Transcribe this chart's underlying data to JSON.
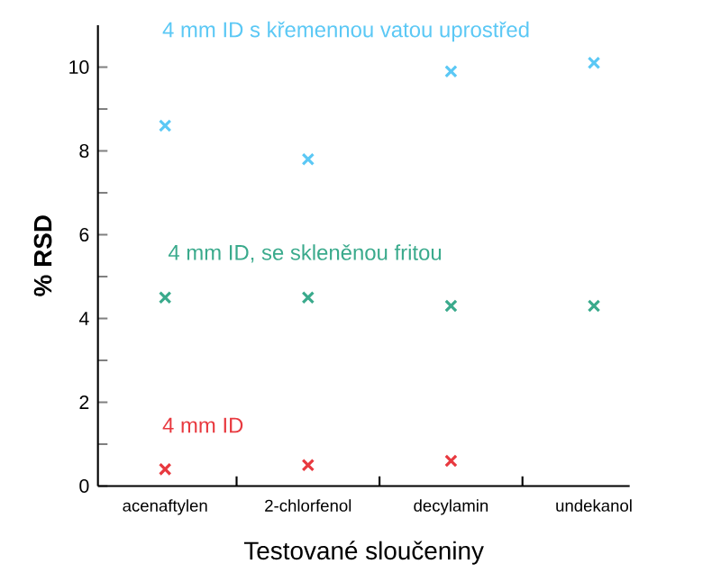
{
  "chart_data": {
    "type": "scatter",
    "xlabel": "Testované sloučeniny",
    "ylabel": "% RSD",
    "categories": [
      "acenaftylen",
      "2-chlorfenol",
      "decylamin",
      "undekanol"
    ],
    "series": [
      {
        "name": "4 mm ID s křemennou vatou uprostřed",
        "color": "#5bc8f5",
        "values": [
          8.6,
          7.8,
          9.9,
          10.1
        ]
      },
      {
        "name": "4 mm ID, se skleněnou fritou",
        "color": "#3aaa8c",
        "values": [
          4.5,
          4.5,
          4.3,
          4.3
        ]
      },
      {
        "name": "4 mm ID",
        "color": "#e8393f",
        "values": [
          0.4,
          0.5,
          0.6,
          null
        ]
      }
    ],
    "ylim": [
      0,
      11
    ],
    "yticks": [
      0,
      {
        "value": 1,
        "label": null
      },
      2,
      {
        "value": 3,
        "label": null
      },
      4,
      {
        "value": 5,
        "label": null
      },
      6,
      {
        "value": 7,
        "label": null
      },
      8,
      {
        "value": 9,
        "label": null
      },
      10
    ],
    "marker": "cross"
  }
}
